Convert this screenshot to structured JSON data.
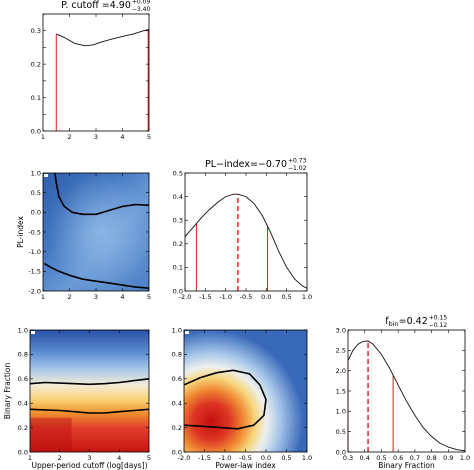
{
  "chart_data": [
    {
      "id": "p1",
      "type": "line",
      "title": "P. cutoff =4.90",
      "title_sup": "+0.09",
      "title_sub": "−3.40",
      "xlim": [
        1,
        5
      ],
      "ylim": [
        0,
        0.35
      ],
      "xticks": [
        1,
        2,
        3,
        4,
        5
      ],
      "yticks": [
        0.0,
        0.05,
        0.1,
        0.15,
        0.2,
        0.25,
        0.3,
        0.35
      ],
      "ytick_labels": [
        "0.0",
        "",
        "0.1",
        "",
        "0.2",
        "",
        "0.3",
        ""
      ],
      "x": [
        1.5,
        1.8,
        2.2,
        2.6,
        2.9,
        3.2,
        3.6,
        4.0,
        4.4,
        4.8,
        5.0
      ],
      "y": [
        0.29,
        0.28,
        0.262,
        0.255,
        0.258,
        0.266,
        0.275,
        0.283,
        0.29,
        0.3,
        0.304
      ],
      "vlines": [
        1.5,
        4.97
      ],
      "vline_ymax": [
        0.29,
        0.304
      ]
    },
    {
      "id": "p2",
      "type": "heatmap",
      "xlim": [
        1,
        5
      ],
      "ylim": [
        -2,
        1
      ],
      "xticks": [
        1,
        2,
        3,
        4,
        5
      ],
      "yticks": [
        -2.0,
        -1.5,
        -1.0,
        -0.5,
        0.0,
        0.5,
        1.0
      ],
      "ylabel": "PL-index",
      "contours": [
        {
          "x": [
            1.45,
            1.5,
            1.6,
            1.8,
            2.1,
            2.5,
            3.0,
            3.5,
            4.0,
            4.5,
            5.0
          ],
          "y": [
            1.0,
            0.75,
            0.4,
            0.15,
            0.0,
            -0.05,
            -0.05,
            0.05,
            0.15,
            0.2,
            0.18
          ]
        },
        {
          "x": [
            1.05,
            1.3,
            1.6,
            2.0,
            2.5,
            3.0,
            3.5,
            4.0,
            4.5,
            5.0
          ],
          "y": [
            -1.3,
            -1.4,
            -1.5,
            -1.6,
            -1.7,
            -1.75,
            -1.8,
            -1.85,
            -1.9,
            -1.93
          ]
        }
      ]
    },
    {
      "id": "p3",
      "type": "line",
      "title": "PL−index=−0.70",
      "title_sup": "+0.73",
      "title_sub": "−1.02",
      "xlim": [
        -2,
        1
      ],
      "ylim": [
        0,
        0.5
      ],
      "xticks": [
        -2.0,
        -1.5,
        -1.0,
        -0.5,
        0.0,
        0.5,
        1.0
      ],
      "yticks": [
        0.0,
        0.1,
        0.2,
        0.3,
        0.4,
        0.5
      ],
      "x": [
        -2.0,
        -1.8,
        -1.6,
        -1.4,
        -1.2,
        -1.0,
        -0.8,
        -0.7,
        -0.5,
        -0.3,
        -0.1,
        0.1,
        0.3,
        0.5,
        0.7,
        0.9,
        1.0
      ],
      "y": [
        0.23,
        0.27,
        0.31,
        0.345,
        0.375,
        0.4,
        0.41,
        0.41,
        0.4,
        0.37,
        0.32,
        0.25,
        0.17,
        0.1,
        0.05,
        0.02,
        0.012
      ],
      "vlines": [
        -1.72,
        0.03
      ],
      "dashed_line": -0.7
    },
    {
      "id": "p4",
      "type": "heatmap",
      "xlim": [
        1,
        5
      ],
      "ylim": [
        0,
        1
      ],
      "xticks": [
        1,
        2,
        3,
        4,
        5
      ],
      "yticks": [
        0.0,
        0.2,
        0.4,
        0.6,
        0.8,
        1.0
      ],
      "xlabel": "Upper-period cutoff (log[days])",
      "ylabel": "Binary Fraction",
      "contours": [
        {
          "x": [
            1.0,
            1.5,
            2.0,
            2.5,
            3.0,
            3.5,
            4.0,
            4.5,
            5.0
          ],
          "y": [
            0.56,
            0.57,
            0.565,
            0.56,
            0.555,
            0.56,
            0.57,
            0.585,
            0.6
          ]
        },
        {
          "x": [
            1.0,
            1.5,
            2.0,
            2.5,
            3.0,
            3.5,
            4.0,
            4.5,
            5.0
          ],
          "y": [
            0.35,
            0.345,
            0.34,
            0.33,
            0.32,
            0.32,
            0.33,
            0.34,
            0.35
          ]
        }
      ]
    },
    {
      "id": "p5",
      "type": "heatmap",
      "xlim": [
        -2,
        1
      ],
      "ylim": [
        0,
        1
      ],
      "xticks": [
        -2.0,
        -1.5,
        -1.0,
        -0.5,
        0.0,
        0.5,
        1.0
      ],
      "yticks": [
        0.0,
        0.2,
        0.4,
        0.6,
        0.8,
        1.0
      ],
      "xlabel": "Power-law index",
      "contours": [
        {
          "x": [
            -2.0,
            -1.6,
            -1.2,
            -0.8,
            -0.4,
            -0.15,
            0.0,
            -0.05,
            -0.3,
            -0.7,
            -1.1,
            -1.5,
            -2.0
          ],
          "y": [
            0.55,
            0.61,
            0.65,
            0.67,
            0.64,
            0.55,
            0.43,
            0.3,
            0.22,
            0.19,
            0.2,
            0.21,
            0.22
          ]
        }
      ]
    },
    {
      "id": "p6",
      "type": "line",
      "title": "f",
      "title_subscript": "bin",
      "title_value": "=0.42",
      "title_sup": "+0.15",
      "title_sub": "−0.12",
      "xlim": [
        0.3,
        1.0
      ],
      "ylim": [
        0,
        3.0
      ],
      "xticks": [
        0.3,
        0.4,
        0.5,
        0.6,
        0.7,
        0.8,
        0.9,
        1.0
      ],
      "yticks": [
        0.0,
        0.5,
        1.0,
        1.5,
        2.0,
        2.5,
        3.0
      ],
      "xlabel": "Binary Fraction",
      "x": [
        0.3,
        0.33,
        0.36,
        0.39,
        0.42,
        0.45,
        0.5,
        0.55,
        0.6,
        0.65,
        0.7,
        0.75,
        0.8,
        0.85,
        0.9,
        0.95,
        1.0
      ],
      "y": [
        2.25,
        2.5,
        2.65,
        2.72,
        2.73,
        2.65,
        2.4,
        2.05,
        1.65,
        1.25,
        0.9,
        0.6,
        0.38,
        0.22,
        0.12,
        0.06,
        0.03
      ],
      "vlines": [
        0.3,
        0.57
      ],
      "dashed_line": 0.42
    }
  ]
}
